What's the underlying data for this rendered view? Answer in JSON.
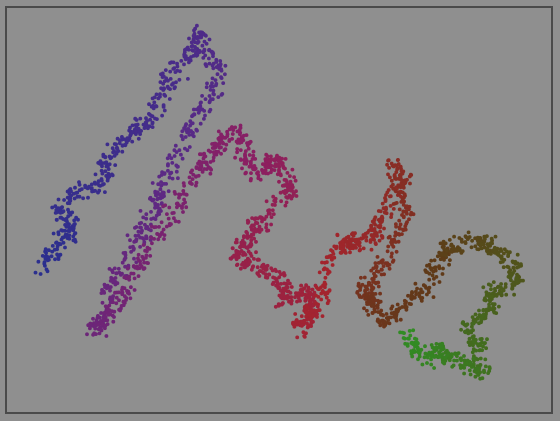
{
  "image": {
    "subject": "random-walk-scatter",
    "background_color": "#8f8f8f",
    "frame_color": "#4a4a4a",
    "color_gradient": [
      "#2b2f8e",
      "#5a2a86",
      "#8b1f62",
      "#a4242d",
      "#5f3a18",
      "#2f8f24"
    ]
  }
}
